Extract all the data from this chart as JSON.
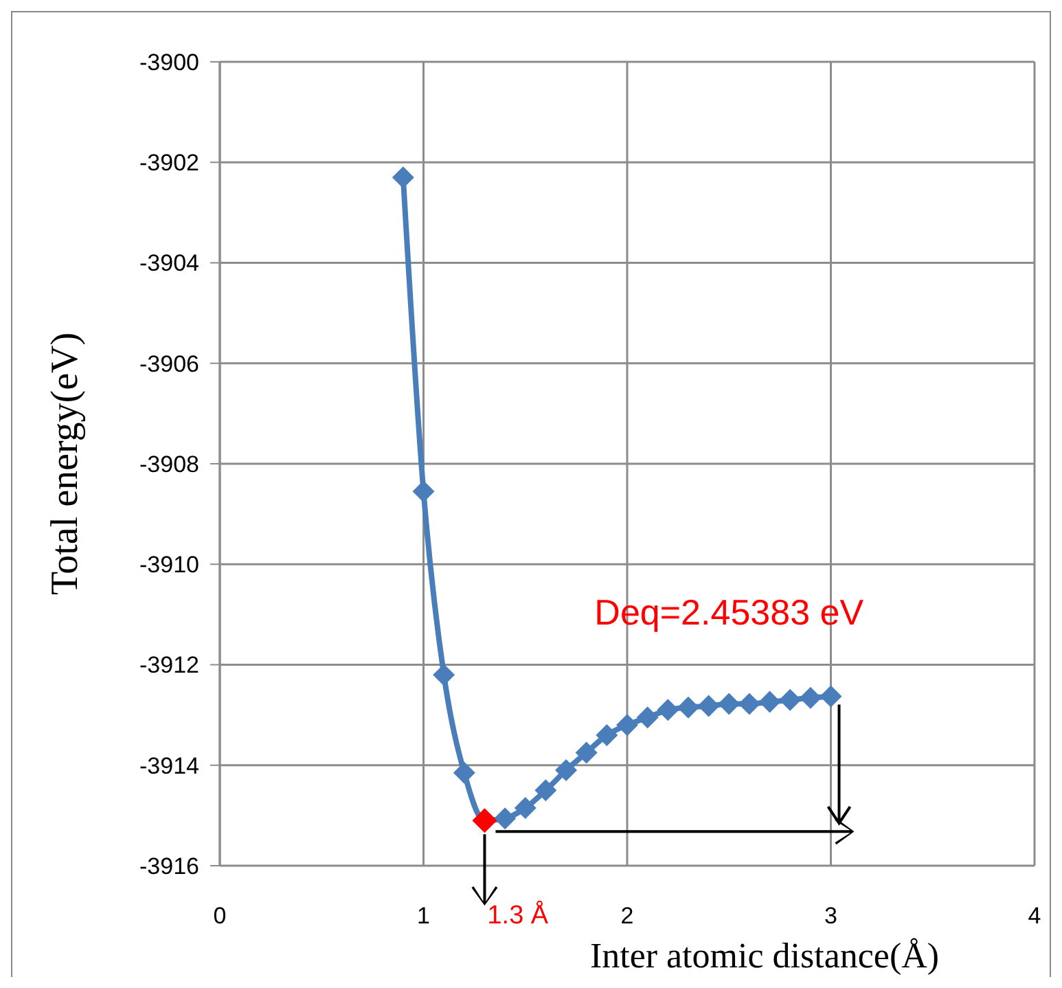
{
  "chart_data": {
    "type": "line",
    "xlabel": "Inter atomic distance(Å)",
    "ylabel": "Total energy(eV)",
    "xlim": [
      0,
      4
    ],
    "xticks": [
      0,
      1,
      2,
      3,
      4
    ],
    "ylim": [
      -3916,
      -3900
    ],
    "yticks": [
      -3916,
      -3914,
      -3912,
      -3910,
      -3908,
      -3906,
      -3904,
      -3902,
      -3900
    ],
    "grid": true,
    "marker": "diamond",
    "line_style": "solid",
    "series": [
      {
        "color": "#4a7ebb",
        "x": [
          0.9,
          1.0,
          1.1,
          1.2,
          1.3,
          1.4,
          1.5,
          1.6,
          1.7,
          1.8,
          1.9,
          2.0,
          2.1,
          2.2,
          2.3,
          2.4,
          2.5,
          2.6,
          2.7,
          2.8,
          2.9,
          3.0
        ],
        "values": [
          -3902.3,
          -3908.55,
          -3912.2,
          -3914.15,
          -3915.1,
          -3915.06,
          -3914.85,
          -3914.5,
          -3914.1,
          -3913.75,
          -3913.4,
          -3913.2,
          -3913.05,
          -3912.9,
          -3912.85,
          -3912.82,
          -3912.78,
          -3912.78,
          -3912.74,
          -3912.7,
          -3912.66,
          -3912.63
        ]
      },
      {
        "type": "scatter",
        "color": "#ff0000",
        "x": [
          1.3
        ],
        "values": [
          -3915.1
        ]
      }
    ],
    "annotations": [
      "Deq=2.45383  eV",
      "1.3 Å"
    ]
  }
}
